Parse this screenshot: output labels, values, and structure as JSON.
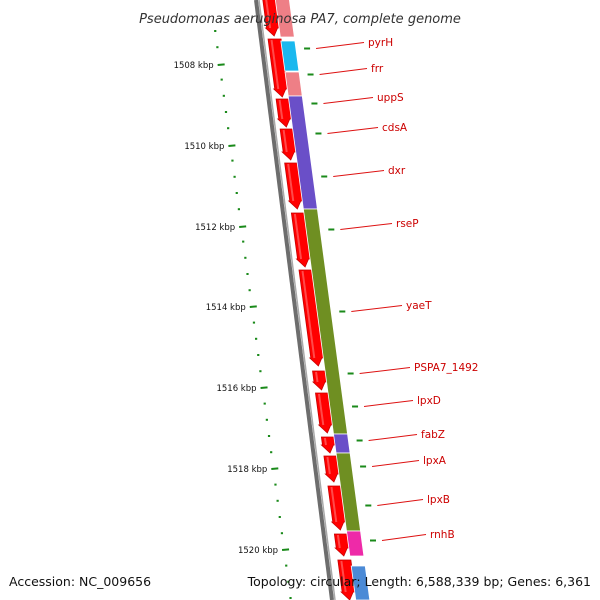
{
  "title": "Pseudomonas aeruginosa PA7, complete genome",
  "footer": {
    "accession": "Accession: NC_009656",
    "summary": "Topology: circular; Length: 6,588,339 bp; Genes: 6,361"
  },
  "scale_ticks": [
    "1508 kbp",
    "1510 kbp",
    "1512 kbp",
    "1514 kbp",
    "1516 kbp",
    "1518 kbp",
    "1520 kbp"
  ],
  "gene_labels": [
    "pyrH",
    "frr",
    "uppS",
    "cdsA",
    "dxr",
    "rseP",
    "yaeT",
    "PSPA7_1492",
    "lpxD",
    "fabZ",
    "lpxA",
    "lpxB",
    "rnhB"
  ],
  "colors": {
    "cds_strand": "#ff0000",
    "tick_marks": "#1a8a1a",
    "label_text": "#cc0000",
    "leader_line": "#dd1111",
    "backbone": "#7d7d7d",
    "cog_green": "#6f8f22",
    "cog_purple": "#6a4fc8",
    "cog_pink": "#ee7f86",
    "cog_cyan": "#1ab8ee",
    "cog_magenta": "#ee2aa8",
    "cog_steelblue": "#4b8ad6"
  }
}
